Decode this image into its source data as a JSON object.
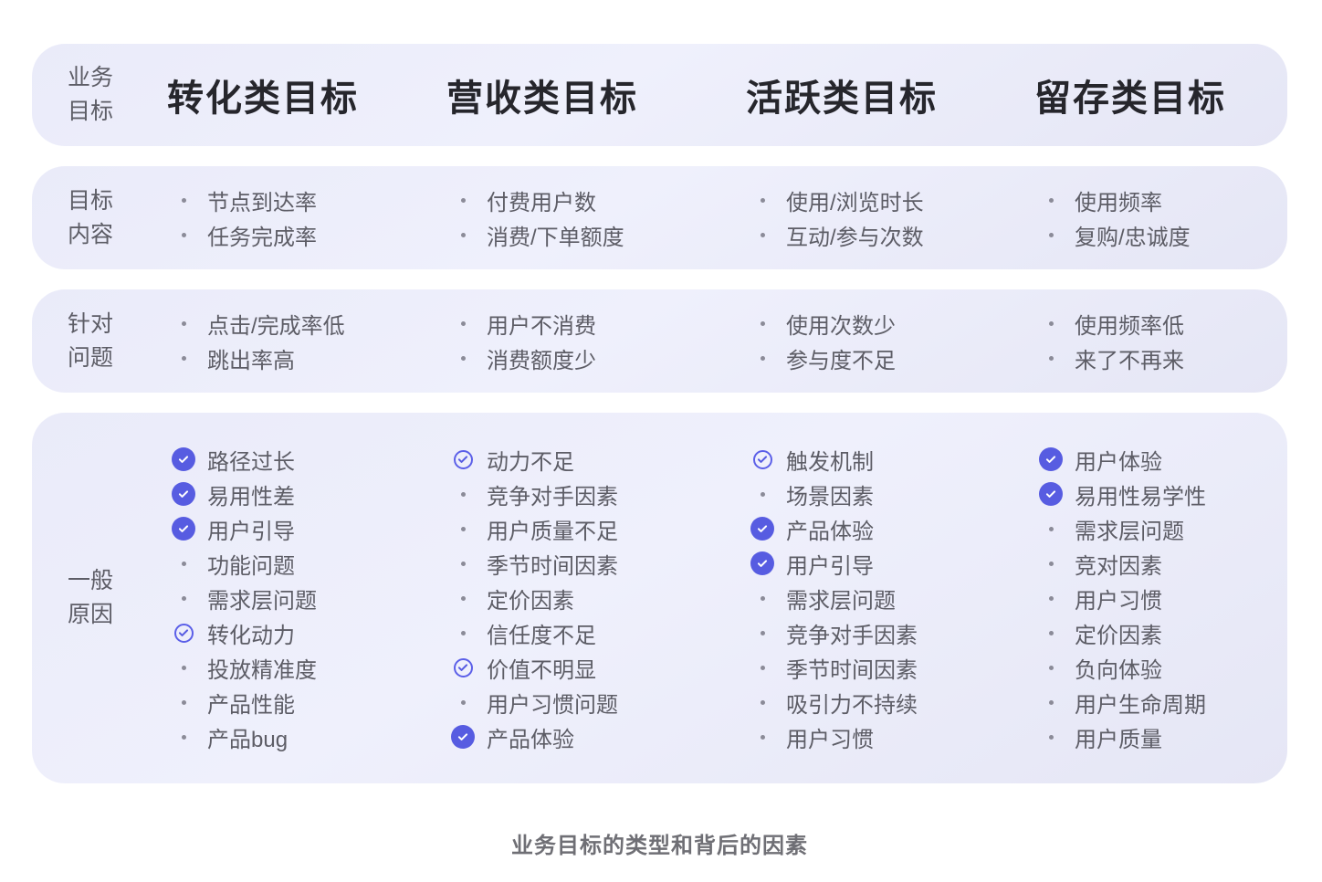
{
  "table": {
    "header_label_lines": [
      "业务",
      "目标"
    ],
    "columns": [
      "转化类目标",
      "营收类目标",
      "活跃类目标",
      "留存类目标"
    ],
    "rows": [
      {
        "label_lines": [
          "目标",
          "内容"
        ],
        "cells": [
          [
            "节点到达率",
            "任务完成率"
          ],
          [
            "付费用户数",
            "消费/下单额度"
          ],
          [
            "使用/浏览时长",
            "互动/参与次数"
          ],
          [
            "使用频率",
            "复购/忠诚度"
          ]
        ]
      },
      {
        "label_lines": [
          "针对",
          "问题"
        ],
        "cells": [
          [
            "点击/完成率低",
            "跳出率高"
          ],
          [
            "用户不消费",
            "消费额度少"
          ],
          [
            "使用次数少",
            "参与度不足"
          ],
          [
            "使用频率低",
            "来了不再来"
          ]
        ]
      },
      {
        "label_lines": [
          "一般",
          "原因"
        ],
        "cells": [
          [
            {
              "text": "路径过长",
              "marker": "check-filled"
            },
            {
              "text": "易用性差",
              "marker": "check-filled"
            },
            {
              "text": "用户引导",
              "marker": "check-filled"
            },
            "功能问题",
            "需求层问题",
            {
              "text": "转化动力",
              "marker": "check-outline"
            },
            "投放精准度",
            "产品性能",
            "产品bug"
          ],
          [
            {
              "text": "动力不足",
              "marker": "check-outline"
            },
            "竞争对手因素",
            "用户质量不足",
            "季节时间因素",
            "定价因素",
            "信任度不足",
            {
              "text": "价值不明显",
              "marker": "check-outline"
            },
            "用户习惯问题",
            {
              "text": "产品体验",
              "marker": "check-filled"
            }
          ],
          [
            {
              "text": "触发机制",
              "marker": "check-outline"
            },
            "场景因素",
            {
              "text": "产品体验",
              "marker": "check-filled"
            },
            {
              "text": "用户引导",
              "marker": "check-filled"
            },
            "需求层问题",
            "竞争对手因素",
            "季节时间因素",
            "吸引力不持续",
            "用户习惯"
          ],
          [
            {
              "text": "用户体验",
              "marker": "check-filled"
            },
            {
              "text": "易用性易学性",
              "marker": "check-filled"
            },
            "需求层问题",
            "竞对因素",
            "用户习惯",
            "定价因素",
            "负向体验",
            "用户生命周期",
            "用户质量"
          ]
        ]
      }
    ]
  },
  "caption": "业务目标的类型和背后的因素",
  "icons": {
    "check_filled": "check-filled-icon",
    "check_outline": "check-outline-icon",
    "bullet": "bullet-dot-icon"
  },
  "colors": {
    "accent_purple": "#575ce1",
    "outline_purple": "#5b5fe8",
    "card_background": "#e9eaf8",
    "header_text": "#26262c",
    "body_text": "#5d5d66",
    "bullet_gray": "#8b8b98",
    "caption_gray": "#6f6f75",
    "page_background": "#ffffff"
  }
}
